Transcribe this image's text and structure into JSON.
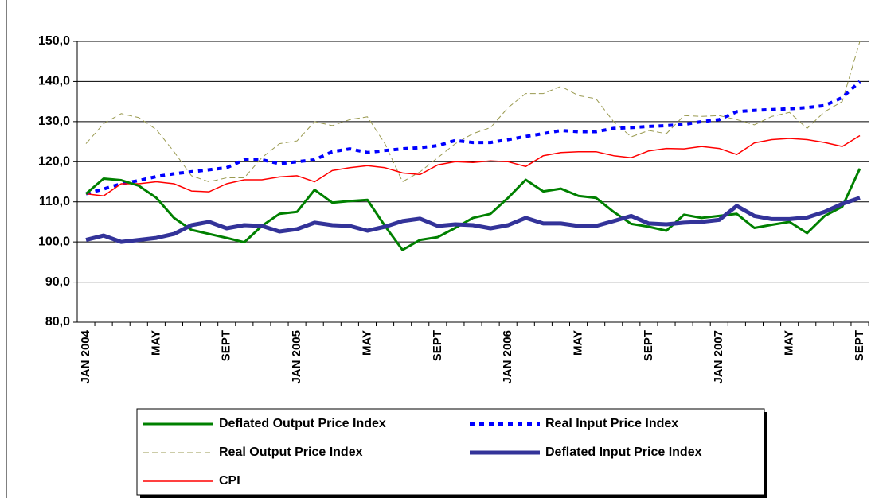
{
  "chart_data": {
    "type": "line",
    "categories": [
      "JAN 2004",
      null,
      null,
      null,
      "MAY",
      null,
      null,
      null,
      "SEPT",
      null,
      null,
      null,
      "JAN 2005",
      null,
      null,
      null,
      "MAY",
      null,
      null,
      null,
      "SEPT",
      null,
      null,
      null,
      "JAN 2006",
      null,
      null,
      null,
      "MAY",
      null,
      null,
      null,
      "SEPT",
      null,
      null,
      null,
      "JAN 2007",
      null,
      null,
      null,
      "MAY",
      null,
      null,
      null,
      "SEPT"
    ],
    "ylim": [
      80,
      150
    ],
    "yticks": [
      {
        "value": 80,
        "label": "80,0"
      },
      {
        "value": 90,
        "label": "90,0"
      },
      {
        "value": 100,
        "label": "100,0"
      },
      {
        "value": 110,
        "label": "110,0"
      },
      {
        "value": 120,
        "label": "120,0"
      },
      {
        "value": 130,
        "label": "130,0"
      },
      {
        "value": 140,
        "label": "140,0"
      },
      {
        "value": 150,
        "label": "150,0"
      }
    ],
    "grid": true,
    "series": [
      {
        "name": "Deflated Output Price Index",
        "color": "#008000",
        "values": [
          112,
          115.8,
          115.4,
          114,
          111,
          106,
          103,
          102,
          101,
          99.9,
          104,
          107,
          107.5,
          113,
          109.8,
          110.2,
          110.5,
          104,
          98,
          100.5,
          101.2,
          103.5,
          106,
          107,
          111,
          115.5,
          112.6,
          113.3,
          111.5,
          111,
          107.5,
          104.5,
          103.8,
          102.8,
          106.8,
          106,
          106.5,
          107,
          103.5,
          104.3,
          105,
          102.2,
          106.5,
          108.8,
          118.3
        ]
      },
      {
        "name": "Real Input Price Index",
        "color": "#0000ff",
        "values": [
          112,
          113.2,
          114.5,
          115.3,
          116.3,
          117,
          117.5,
          118,
          118.5,
          120.5,
          120.5,
          119.5,
          120,
          120.5,
          122.5,
          123.2,
          122.3,
          122.8,
          123.2,
          123.5,
          124,
          125.3,
          124.8,
          124.8,
          125.5,
          126.3,
          127,
          127.8,
          127.5,
          127.5,
          128.3,
          128.5,
          128.8,
          129,
          129.3,
          130,
          130.5,
          132.5,
          132.8,
          133,
          133.2,
          133.5,
          134,
          136,
          140
        ]
      },
      {
        "name": "Real Output Price Index",
        "color": "#9a9a50",
        "values": [
          124.5,
          129.5,
          132,
          131,
          128,
          122.5,
          116.5,
          115,
          116,
          116,
          121,
          124.5,
          125.2,
          130,
          129,
          130.5,
          131.2,
          124.5,
          115,
          117.5,
          121,
          124.5,
          127,
          128.5,
          133.5,
          137,
          137,
          138.8,
          136.5,
          135.7,
          130,
          126.2,
          127.8,
          127,
          131.5,
          131.3,
          131.5,
          130.5,
          129.2,
          131.3,
          132.3,
          128.3,
          132.5,
          135,
          150
        ]
      },
      {
        "name": "Deflated Input Price Index",
        "color": "#333399",
        "values": [
          100.5,
          101.6,
          100,
          100.5,
          101,
          102,
          104.2,
          105,
          103.4,
          104.2,
          104,
          102.6,
          103.2,
          104.8,
          104.2,
          104,
          102.8,
          103.8,
          105.2,
          105.8,
          104,
          104.4,
          104.2,
          103.4,
          104.2,
          106,
          104.6,
          104.6,
          104,
          104,
          105.2,
          106.5,
          104.6,
          104.4,
          104.8,
          105,
          105.5,
          109,
          106.5,
          105.7,
          105.7,
          106.1,
          107.5,
          109.5,
          111
        ]
      },
      {
        "name": "CPI",
        "color": "#ff0000",
        "values": [
          112,
          111.5,
          114.5,
          114.5,
          115,
          114.5,
          112.7,
          112.5,
          114.5,
          115.5,
          115.5,
          116.2,
          116.5,
          115,
          117.8,
          118.5,
          119,
          118.5,
          117.2,
          116.8,
          119.2,
          120,
          119.8,
          120.2,
          120,
          118.8,
          121.5,
          122.3,
          122.5,
          122.5,
          121.5,
          121,
          122.7,
          123.3,
          123.2,
          123.8,
          123.3,
          121.8,
          124.7,
          125.5,
          125.8,
          125.5,
          124.8,
          123.8,
          126.5
        ]
      }
    ]
  }
}
